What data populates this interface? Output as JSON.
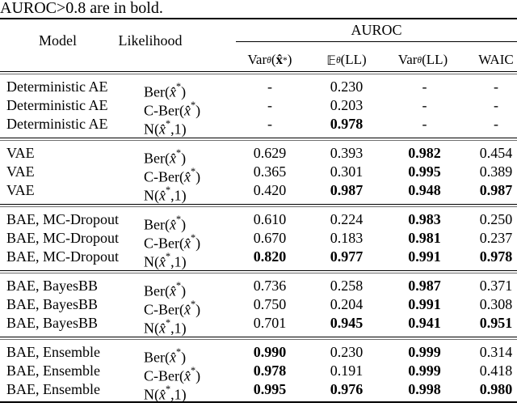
{
  "caption": "AUROC>0.8 are in bold.",
  "header": {
    "model": "Model",
    "likelihood": "Likelihood",
    "group": "AUROC",
    "subcols": [
      [
        [
          "n",
          "Var"
        ],
        [
          "sub",
          "θ"
        ],
        [
          "n",
          "("
        ],
        [
          "b",
          "x̂"
        ],
        [
          "sup",
          "*"
        ],
        [
          "n",
          ")"
        ]
      ],
      [
        [
          "bb",
          "𝔼"
        ],
        [
          "sub",
          "θ"
        ],
        [
          "n",
          " (LL)"
        ]
      ],
      [
        [
          "n",
          "Var"
        ],
        [
          "sub",
          "θ"
        ],
        [
          "n",
          "(LL)"
        ]
      ],
      [
        [
          "n",
          "WAIC"
        ]
      ]
    ]
  },
  "likelihood_formats": {
    "ber": [
      [
        "n",
        "Ber("
      ],
      [
        "i",
        "x̂"
      ],
      [
        "sup",
        "*"
      ],
      [
        "n",
        ")"
      ]
    ],
    "cber": [
      [
        "n",
        "C-Ber("
      ],
      [
        "i",
        "x̂"
      ],
      [
        "sup",
        "*"
      ],
      [
        "n",
        ")"
      ]
    ],
    "norm": [
      [
        "n",
        "N("
      ],
      [
        "i",
        "x̂"
      ],
      [
        "sup",
        "*"
      ],
      [
        "n",
        ",1)"
      ]
    ]
  },
  "sections": [
    {
      "rows": [
        {
          "model": "Deterministic AE",
          "lik": "ber",
          "values": [
            {
              "v": "-",
              "b": false
            },
            {
              "v": "0.230",
              "b": false
            },
            {
              "v": "-",
              "b": false
            },
            {
              "v": "-",
              "b": false
            }
          ]
        },
        {
          "model": "Deterministic AE",
          "lik": "cber",
          "values": [
            {
              "v": "-",
              "b": false
            },
            {
              "v": "0.203",
              "b": false
            },
            {
              "v": "-",
              "b": false
            },
            {
              "v": "-",
              "b": false
            }
          ]
        },
        {
          "model": "Deterministic AE",
          "lik": "norm",
          "values": [
            {
              "v": "-",
              "b": false
            },
            {
              "v": "0.978",
              "b": true
            },
            {
              "v": "-",
              "b": false
            },
            {
              "v": "-",
              "b": false
            }
          ]
        }
      ]
    },
    {
      "rows": [
        {
          "model": "VAE",
          "lik": "ber",
          "values": [
            {
              "v": "0.629",
              "b": false
            },
            {
              "v": "0.393",
              "b": false
            },
            {
              "v": "0.982",
              "b": true
            },
            {
              "v": "0.454",
              "b": false
            }
          ]
        },
        {
          "model": "VAE",
          "lik": "cber",
          "values": [
            {
              "v": "0.365",
              "b": false
            },
            {
              "v": "0.301",
              "b": false
            },
            {
              "v": "0.995",
              "b": true
            },
            {
              "v": "0.389",
              "b": false
            }
          ]
        },
        {
          "model": "VAE",
          "lik": "norm",
          "values": [
            {
              "v": "0.420",
              "b": false
            },
            {
              "v": "0.987",
              "b": true
            },
            {
              "v": "0.948",
              "b": true
            },
            {
              "v": "0.987",
              "b": true
            }
          ]
        }
      ]
    },
    {
      "rows": [
        {
          "model": "BAE, MC-Dropout",
          "lik": "ber",
          "values": [
            {
              "v": "0.610",
              "b": false
            },
            {
              "v": "0.224",
              "b": false
            },
            {
              "v": "0.983",
              "b": true
            },
            {
              "v": "0.250",
              "b": false
            }
          ]
        },
        {
          "model": "BAE, MC-Dropout",
          "lik": "cber",
          "values": [
            {
              "v": "0.670",
              "b": false
            },
            {
              "v": "0.183",
              "b": false
            },
            {
              "v": "0.981",
              "b": true
            },
            {
              "v": "0.237",
              "b": false
            }
          ]
        },
        {
          "model": "BAE, MC-Dropout",
          "lik": "norm",
          "values": [
            {
              "v": "0.820",
              "b": true
            },
            {
              "v": "0.977",
              "b": true
            },
            {
              "v": "0.991",
              "b": true
            },
            {
              "v": "0.978",
              "b": true
            }
          ]
        }
      ]
    },
    {
      "rows": [
        {
          "model": "BAE, BayesBB",
          "lik": "ber",
          "values": [
            {
              "v": "0.736",
              "b": false
            },
            {
              "v": "0.258",
              "b": false
            },
            {
              "v": "0.987",
              "b": true
            },
            {
              "v": "0.371",
              "b": false
            }
          ]
        },
        {
          "model": "BAE, BayesBB",
          "lik": "cber",
          "values": [
            {
              "v": "0.750",
              "b": false
            },
            {
              "v": "0.204",
              "b": false
            },
            {
              "v": "0.991",
              "b": true
            },
            {
              "v": "0.308",
              "b": false
            }
          ]
        },
        {
          "model": "BAE, BayesBB",
          "lik": "norm",
          "values": [
            {
              "v": "0.701",
              "b": false
            },
            {
              "v": "0.945",
              "b": true
            },
            {
              "v": "0.941",
              "b": true
            },
            {
              "v": "0.951",
              "b": true
            }
          ]
        }
      ]
    },
    {
      "rows": [
        {
          "model": "BAE, Ensemble",
          "lik": "ber",
          "values": [
            {
              "v": "0.990",
              "b": true
            },
            {
              "v": "0.230",
              "b": false
            },
            {
              "v": "0.999",
              "b": true
            },
            {
              "v": "0.314",
              "b": false
            }
          ]
        },
        {
          "model": "BAE, Ensemble",
          "lik": "cber",
          "values": [
            {
              "v": "0.978",
              "b": true
            },
            {
              "v": "0.191",
              "b": false
            },
            {
              "v": "0.999",
              "b": true
            },
            {
              "v": "0.418",
              "b": false
            }
          ]
        },
        {
          "model": "BAE, Ensemble",
          "lik": "norm",
          "values": [
            {
              "v": "0.995",
              "b": true
            },
            {
              "v": "0.976",
              "b": true
            },
            {
              "v": "0.998",
              "b": true
            },
            {
              "v": "0.980",
              "b": true
            }
          ]
        }
      ]
    }
  ]
}
